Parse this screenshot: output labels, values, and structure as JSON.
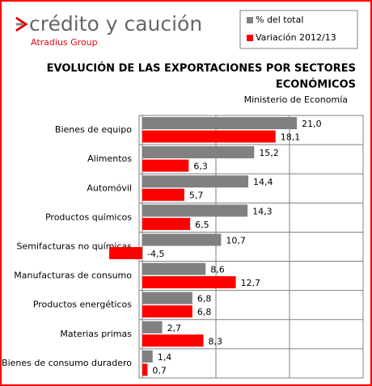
{
  "chart_data": {
    "type": "hbar",
    "logo_text": "crédito y caución",
    "logo_subtext": "Atradius Group",
    "title": "EVOLUCIÓN DE LAS EXPORTACIONES POR SECTORES ECONÓMICOS",
    "subtitle": "Ministerio de Economía",
    "categories": [
      "Bienes de equipo",
      "Alimentos",
      "Automóvil",
      "Productos químicos",
      "Semifacturas no químicas",
      "Manufacturas  de consumo",
      "Productos energéticos",
      "Materias primas",
      "Bienes de consumo duradero"
    ],
    "series": [
      {
        "name": "% del total",
        "color": "#808080",
        "values": [
          21.0,
          15.2,
          14.4,
          14.3,
          10.7,
          8.6,
          6.8,
          2.7,
          1.4
        ],
        "value_labels": [
          "21,0",
          "15,2",
          "14,4",
          "14,3",
          "10,7",
          "8,6",
          "6,8",
          "2,7",
          "1,4"
        ]
      },
      {
        "name": "Variación 2012/13",
        "color": "#ff0000",
        "values": [
          18.1,
          6.3,
          5.7,
          6.5,
          -4.5,
          12.7,
          6.8,
          8.3,
          0.7
        ],
        "value_labels": [
          "18,1",
          "6,3",
          "5,7",
          "6,5",
          "-4,5",
          "12,7",
          "6,8",
          "8,3",
          "0,7"
        ]
      }
    ],
    "xlim": [
      0,
      30
    ],
    "xticks": [
      0,
      10,
      20,
      30
    ],
    "tick_labels": false,
    "grid": true
  }
}
